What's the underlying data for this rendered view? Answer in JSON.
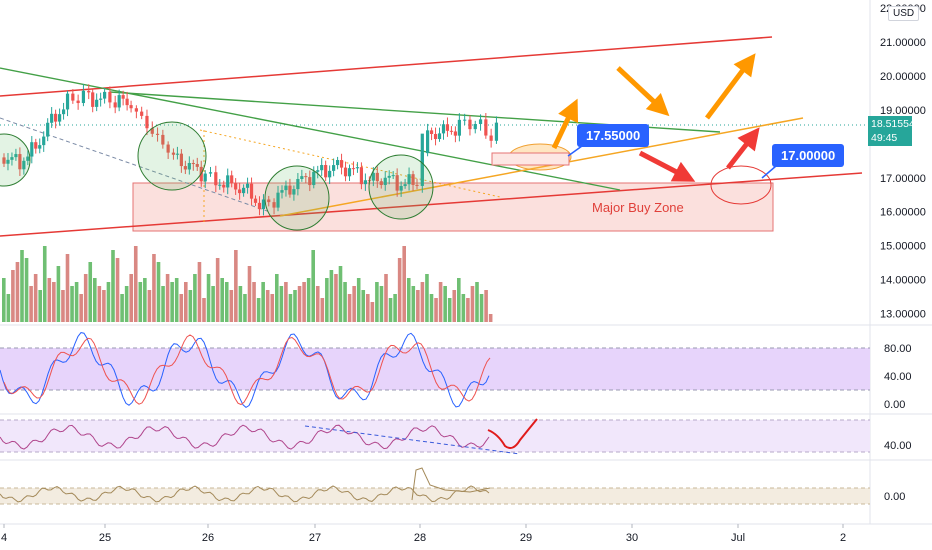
{
  "currency": "USD",
  "last_price": {
    "value": "18.51554",
    "countdown": "49:45",
    "color": "#26a69a"
  },
  "colors": {
    "up": "#26a69a",
    "down": "#ef5350",
    "bull_vol": "#6fbf73",
    "bear_vol": "#d98883",
    "red_line": "#e53935",
    "green_line": "#43a047",
    "orange_line": "#f5a623",
    "arrow_orange": "#ff9800",
    "arrow_red": "#f03a36",
    "buy_zone": "#fbe0dd",
    "stoch_band": "#e7d4fb",
    "rsi_band": "#f1e7fb",
    "osc_band": "#f3ece0"
  },
  "annotations": {
    "callout_1": "17.55000",
    "callout_2": "17.00000",
    "zone": "Major Buy Zone"
  },
  "chart_data": [
    {
      "type": "line",
      "panel": "price",
      "subtype": "candlestick",
      "y_axis_labels": [
        "22.00000",
        "21.00000",
        "20.00000",
        "19.00000",
        "17.00000",
        "16.00000",
        "15.00000",
        "14.00000",
        "13.00000"
      ],
      "ylim": [
        12.9,
        22.0
      ],
      "x_tick_labels": [
        "4",
        "25",
        "26",
        "27",
        "28",
        "29",
        "30",
        "Jul",
        "2"
      ],
      "xlim_days": [
        24.0,
        33.0
      ],
      "series": [
        {
          "points": [
            [
              24.0,
              17.6
            ],
            [
              24.15,
              17.45
            ],
            [
              24.3,
              17.9
            ],
            [
              24.45,
              18.7
            ],
            [
              24.6,
              19.2
            ],
            [
              24.7,
              19.45
            ],
            [
              24.8,
              19.35
            ],
            [
              24.95,
              19.3
            ],
            [
              25.05,
              19.25
            ],
            [
              25.2,
              19.2
            ],
            [
              25.3,
              18.7
            ],
            [
              25.4,
              18.35
            ],
            [
              25.5,
              18.0
            ],
            [
              25.6,
              17.6
            ],
            [
              25.75,
              17.35
            ],
            [
              25.9,
              17.1
            ],
            [
              26.0,
              16.9
            ],
            [
              26.15,
              16.8
            ],
            [
              26.3,
              16.6
            ],
            [
              26.45,
              16.1
            ],
            [
              26.55,
              16.4
            ],
            [
              26.7,
              16.7
            ],
            [
              26.85,
              17.0
            ],
            [
              27.0,
              17.2
            ],
            [
              27.15,
              17.35
            ],
            [
              27.3,
              17.2
            ],
            [
              27.45,
              16.9
            ],
            [
              27.6,
              17.0
            ],
            [
              27.75,
              16.8
            ],
            [
              27.9,
              16.9
            ],
            [
              28.0,
              18.3
            ],
            [
              28.15,
              18.35
            ],
            [
              28.3,
              18.5
            ],
            [
              28.4,
              18.7
            ],
            [
              28.5,
              18.45
            ],
            [
              28.6,
              18.3
            ],
            [
              28.7,
              18.5
            ]
          ]
        }
      ]
    },
    {
      "type": "bar",
      "panel": "volume",
      "values": [
        0.55,
        0.35,
        0.65,
        0.75,
        0.9,
        0.8,
        0.45,
        0.6,
        0.4,
        0.95,
        0.55,
        0.5,
        0.7,
        0.4,
        0.85,
        0.45,
        0.5,
        0.35,
        0.6,
        0.75,
        0.55,
        0.45,
        0.4,
        0.5,
        0.9,
        0.8,
        0.35,
        0.45,
        0.6,
        0.95,
        0.5,
        0.55,
        0.4,
        0.85,
        0.75,
        0.45,
        0.6,
        0.5,
        0.55,
        0.35,
        0.5,
        0.4,
        0.6,
        0.75,
        0.3,
        0.6,
        0.45,
        0.8,
        0.55,
        0.5,
        0.4,
        0.9,
        0.45,
        0.35,
        0.7,
        0.5,
        0.3,
        0.5,
        0.4,
        0.35,
        0.6,
        0.45,
        0.5,
        0.35,
        0.4,
        0.45,
        0.5,
        0.55,
        0.9,
        0.45,
        0.3,
        0.55,
        0.65,
        0.6,
        0.7,
        0.5,
        0.35,
        0.45,
        0.55,
        0.4,
        0.35,
        0.25,
        0.5,
        0.45,
        0.6,
        0.3,
        0.35,
        0.8,
        0.95,
        0.55,
        0.45,
        0.4,
        0.5,
        0.6,
        0.35,
        0.3,
        0.5,
        0.45,
        0.3,
        0.4,
        0.55,
        0.35,
        0.3,
        0.45,
        0.5,
        0.35,
        0.4,
        0.1
      ]
    },
    {
      "type": "line",
      "panel": "stochastic",
      "y_axis_labels": [
        "80.00",
        "40.00",
        "0.00"
      ],
      "ylim": [
        0,
        100
      ],
      "band": [
        20,
        80
      ]
    },
    {
      "type": "line",
      "panel": "rsi",
      "y_axis_labels": [
        "40.00"
      ],
      "ylim": [
        30,
        75
      ],
      "band": [
        30,
        70
      ]
    },
    {
      "type": "line",
      "panel": "oscillator",
      "y_axis_labels": [
        "0.00"
      ],
      "ylim": [
        -1,
        1
      ]
    }
  ]
}
